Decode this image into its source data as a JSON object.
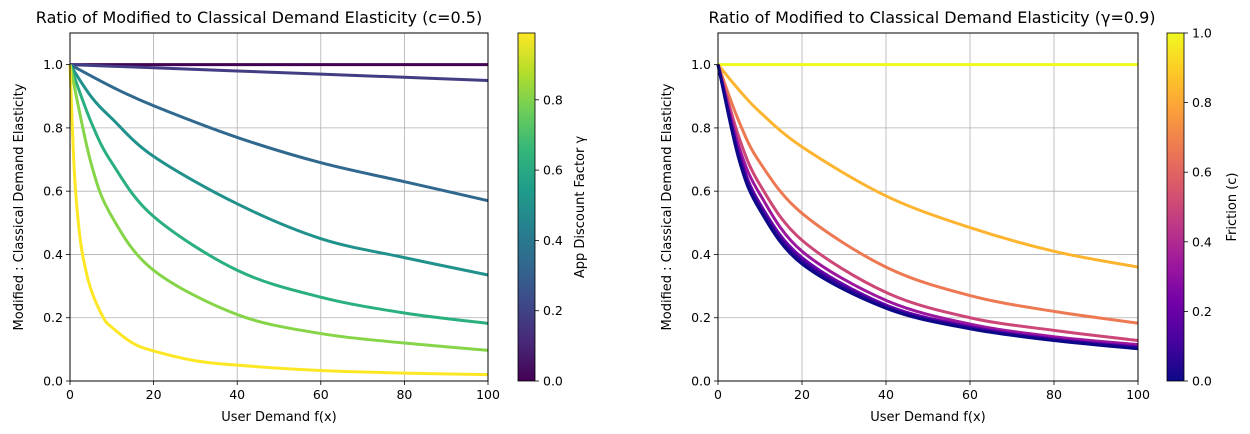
{
  "chart_data": [
    {
      "type": "line",
      "title": "Ratio of Modified to Classical Demand Elasticity (c=0.5)",
      "xlabel": "User Demand f(x)",
      "ylabel": "Modified : Classical Demand Elasticity",
      "xlim": [
        0,
        100
      ],
      "ylim": [
        0,
        1.1
      ],
      "xticks": [
        "0",
        "20",
        "40",
        "60",
        "80",
        "100"
      ],
      "yticks": [
        "0.0",
        "0.2",
        "0.4",
        "0.6",
        "0.8",
        "1.0"
      ],
      "grid": true,
      "colormap": "viridis",
      "colorbar": {
        "label": "App Discount Factor γ",
        "range": [
          0,
          0.99
        ],
        "ticks": [
          "0.0",
          "0.2",
          "0.4",
          "0.6",
          "0.8"
        ],
        "stops": [
          "#440154",
          "#482878",
          "#3e4989",
          "#31688e",
          "#26828e",
          "#1f9e89",
          "#35b779",
          "#6ece58",
          "#b5de2b",
          "#fde725"
        ]
      },
      "series": [
        {
          "gamma": 0.0,
          "color": "#440154",
          "x": [
            0,
            10,
            20,
            40,
            60,
            80,
            100
          ],
          "y": [
            1.0,
            1.0,
            1.0,
            1.0,
            1.0,
            1.0,
            1.0
          ]
        },
        {
          "gamma": 0.1,
          "color": "#433d84",
          "x": [
            0,
            10,
            20,
            40,
            60,
            80,
            100
          ],
          "y": [
            1.0,
            0.995,
            0.99,
            0.98,
            0.97,
            0.96,
            0.95
          ]
        },
        {
          "gamma": 0.3,
          "color": "#30688e",
          "x": [
            0,
            10,
            20,
            40,
            60,
            80,
            100
          ],
          "y": [
            1.0,
            0.93,
            0.87,
            0.77,
            0.69,
            0.63,
            0.57
          ]
        },
        {
          "gamma": 0.5,
          "color": "#21918c",
          "x": [
            0,
            5,
            10,
            20,
            40,
            60,
            80,
            100
          ],
          "y": [
            1.0,
            0.9,
            0.83,
            0.71,
            0.56,
            0.45,
            0.39,
            0.335
          ]
        },
        {
          "gamma": 0.7,
          "color": "#2ab07f",
          "x": [
            0,
            5,
            10,
            20,
            40,
            60,
            80,
            100
          ],
          "y": [
            1.0,
            0.82,
            0.69,
            0.52,
            0.35,
            0.265,
            0.215,
            0.182
          ]
        },
        {
          "gamma": 0.8,
          "color": "#86d549",
          "x": [
            0,
            5,
            10,
            20,
            40,
            60,
            80,
            100
          ],
          "y": [
            1.0,
            0.69,
            0.52,
            0.35,
            0.21,
            0.15,
            0.12,
            0.097
          ]
        },
        {
          "gamma": 0.99,
          "color": "#fde725",
          "x": [
            0,
            1,
            2,
            3,
            5,
            8,
            10,
            15,
            20,
            30,
            40,
            60,
            80,
            100
          ],
          "y": [
            1.0,
            0.67,
            0.5,
            0.4,
            0.29,
            0.2,
            0.17,
            0.12,
            0.095,
            0.064,
            0.05,
            0.033,
            0.025,
            0.02
          ]
        }
      ]
    },
    {
      "type": "line",
      "title": "Ratio of Modified to Classical Demand Elasticity (γ=0.9)",
      "xlabel": "User Demand f(x)",
      "ylabel": "Modified : Classical Demand Elasticity",
      "xlim": [
        0,
        100
      ],
      "ylim": [
        0,
        1.1
      ],
      "xticks": [
        "0",
        "20",
        "40",
        "60",
        "80",
        "100"
      ],
      "yticks": [
        "0.0",
        "0.2",
        "0.4",
        "0.6",
        "0.8",
        "1.0"
      ],
      "grid": true,
      "colormap": "plasma",
      "colorbar": {
        "label": "Friction (c)",
        "range": [
          0,
          1.0
        ],
        "ticks": [
          "0.0",
          "0.2",
          "0.4",
          "0.6",
          "0.8",
          "1.0"
        ],
        "stops": [
          "#0d0887",
          "#46039f",
          "#7201a8",
          "#9c179e",
          "#bd3786",
          "#d8576b",
          "#ed7953",
          "#fb9f3a",
          "#fdca26",
          "#f0f921"
        ]
      },
      "series": [
        {
          "c": 1.0,
          "color": "#f0f921",
          "x": [
            0,
            100
          ],
          "y": [
            1.0,
            1.0
          ]
        },
        {
          "c": 0.8,
          "color": "#fdb42f",
          "x": [
            0,
            5,
            10,
            20,
            40,
            60,
            80,
            100
          ],
          "y": [
            1.0,
            0.92,
            0.85,
            0.74,
            0.585,
            0.485,
            0.41,
            0.36
          ]
        },
        {
          "c": 0.6,
          "color": "#ed7953",
          "x": [
            0,
            5,
            10,
            20,
            40,
            60,
            80,
            100
          ],
          "y": [
            1.0,
            0.82,
            0.69,
            0.53,
            0.36,
            0.27,
            0.22,
            0.183
          ]
        },
        {
          "c": 0.4,
          "color": "#cc4778",
          "x": [
            0,
            5,
            10,
            20,
            40,
            60,
            80,
            100
          ],
          "y": [
            1.0,
            0.77,
            0.62,
            0.445,
            0.28,
            0.2,
            0.16,
            0.128
          ]
        },
        {
          "c": 0.3,
          "color": "#9c179e",
          "x": [
            0,
            5,
            10,
            20,
            40,
            60,
            80,
            100
          ],
          "y": [
            1.0,
            0.74,
            0.59,
            0.41,
            0.255,
            0.18,
            0.14,
            0.115
          ]
        },
        {
          "c": 0.15,
          "color": "#6a00a8",
          "x": [
            0,
            5,
            10,
            20,
            40,
            60,
            80,
            100
          ],
          "y": [
            1.0,
            0.72,
            0.56,
            0.39,
            0.24,
            0.172,
            0.133,
            0.108
          ]
        },
        {
          "c": 0.05,
          "color": "#350498",
          "x": [
            0,
            5,
            10,
            20,
            40,
            60,
            80,
            100
          ],
          "y": [
            1.0,
            0.71,
            0.55,
            0.38,
            0.235,
            0.168,
            0.13,
            0.105
          ]
        },
        {
          "c": 0.0,
          "color": "#0d0887",
          "x": [
            0,
            5,
            10,
            20,
            40,
            60,
            80,
            100
          ],
          "y": [
            1.0,
            0.7,
            0.54,
            0.37,
            0.23,
            0.165,
            0.128,
            0.102
          ]
        }
      ]
    }
  ]
}
